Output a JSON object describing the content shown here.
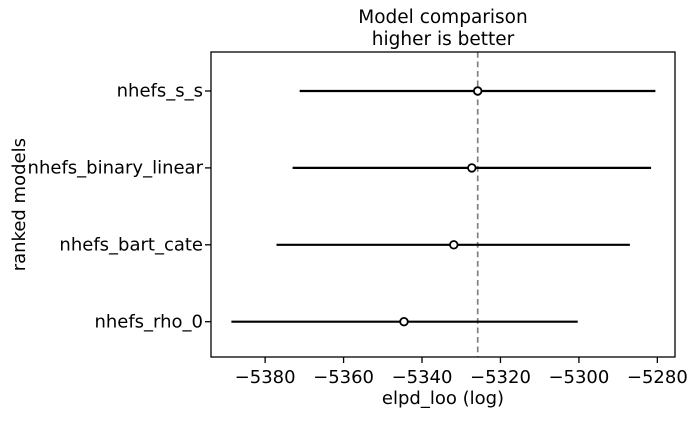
{
  "chart_data": {
    "type": "scatter",
    "subtype": "horizontal-errorbar-forest",
    "title": "Model comparison",
    "subtitle": "higher is better",
    "xlabel": "elpd_loo (log)",
    "ylabel": "ranked models",
    "models": [
      {
        "name": "nhefs_s_s",
        "elpd_loo": -5325.8,
        "lower": -5371.2,
        "upper": -5280.5
      },
      {
        "name": "nhefs_binary_linear",
        "elpd_loo": -5327.3,
        "lower": -5373.0,
        "upper": -5281.6
      },
      {
        "name": "nhefs_bart_cate",
        "elpd_loo": -5331.9,
        "lower": -5377.1,
        "upper": -5287.0
      },
      {
        "name": "nhefs_rho_0",
        "elpd_loo": -5344.6,
        "lower": -5388.6,
        "upper": -5300.3
      }
    ],
    "ref_line_x": -5325.8,
    "xlim": [
      -5393.8,
      -5275.5
    ],
    "x_ticks": [
      -5380,
      -5360,
      -5340,
      -5320,
      -5300,
      -5280
    ],
    "x_tick_labels": [
      "−5380",
      "−5360",
      "−5340",
      "−5320",
      "−5300",
      "−5280"
    ],
    "grid": false,
    "legend": null,
    "colors": {
      "errorbar": "#000000",
      "marker_fill": "#ffffff",
      "marker_edge": "#000000",
      "ref_line": "#808080",
      "spine": "#000000",
      "text": "#000000",
      "background": "#ffffff"
    }
  }
}
